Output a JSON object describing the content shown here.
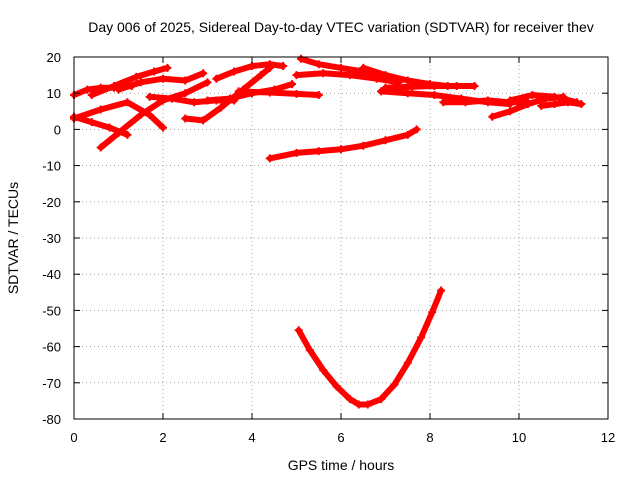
{
  "chart_data": {
    "type": "line",
    "title": "Day 006 of 2025, Sidereal Day-to-day VTEC variation (SDTVAR) for receiver thev",
    "xlabel": "GPS time / hours",
    "ylabel": "SDTVAR / TECUs",
    "xlim": [
      0,
      12
    ],
    "ylim": [
      -80,
      20
    ],
    "xticks": [
      0,
      2,
      4,
      6,
      8,
      10,
      12
    ],
    "yticks": [
      -80,
      -70,
      -60,
      -50,
      -40,
      -30,
      -20,
      -10,
      0,
      10,
      20
    ],
    "grid": true,
    "color": "#ff0000",
    "series": [
      {
        "name": "track-01",
        "x": [
          0.0,
          0.3,
          0.6,
          0.9,
          1.3
        ],
        "y": [
          9.5,
          11,
          11.5,
          11.5,
          12
        ]
      },
      {
        "name": "track-02",
        "x": [
          0.4,
          0.9,
          1.4,
          1.8,
          2.1
        ],
        "y": [
          9.5,
          12,
          14.5,
          16,
          17
        ]
      },
      {
        "name": "track-03",
        "x": [
          0.0,
          0.4,
          0.8,
          1.2
        ],
        "y": [
          3.5,
          2,
          0.5,
          -1.5
        ]
      },
      {
        "name": "track-04",
        "x": [
          0.0,
          0.6,
          1.2,
          1.7,
          2.0
        ],
        "y": [
          3.0,
          5.5,
          7.5,
          4,
          0.5
        ]
      },
      {
        "name": "track-05",
        "x": [
          0.6,
          1.0,
          1.5,
          2.0,
          2.5,
          3.0
        ],
        "y": [
          -5,
          -1,
          4,
          8,
          10,
          13
        ]
      },
      {
        "name": "track-06",
        "x": [
          1.0,
          1.5,
          2.0,
          2.5,
          2.9
        ],
        "y": [
          11,
          13,
          14,
          13.5,
          15.5
        ]
      },
      {
        "name": "track-07",
        "x": [
          1.7,
          2.2,
          2.7,
          3.2,
          3.6
        ],
        "y": [
          9.0,
          8.5,
          7.5,
          8,
          8
        ]
      },
      {
        "name": "track-08",
        "x": [
          2.5,
          2.9,
          3.3,
          3.8,
          4.2,
          4.4
        ],
        "y": [
          3.0,
          2.5,
          6,
          11,
          15,
          17
        ]
      },
      {
        "name": "track-09",
        "x": [
          3.2,
          3.6,
          4.0,
          4.4,
          4.7
        ],
        "y": [
          14.0,
          16,
          17.5,
          18,
          17.5
        ]
      },
      {
        "name": "track-10",
        "x": [
          3.0,
          3.5,
          4.0,
          4.5,
          4.9
        ],
        "y": [
          8.0,
          8.5,
          10,
          11,
          12.5
        ]
      },
      {
        "name": "track-11",
        "x": [
          3.7,
          4.4,
          5.0,
          5.5
        ],
        "y": [
          10.5,
          10.2,
          9.8,
          9.5
        ]
      },
      {
        "name": "track-12",
        "x": [
          4.4,
          5.0,
          5.5,
          6.0,
          6.5,
          7.0,
          7.5,
          7.7
        ],
        "y": [
          -8,
          -6.5,
          -6,
          -5.5,
          -4.5,
          -3,
          -1.5,
          0
        ]
      },
      {
        "name": "track-13",
        "x": [
          5.1,
          5.5,
          6.0,
          6.5,
          6.9
        ],
        "y": [
          19.5,
          18,
          17,
          16,
          15
        ]
      },
      {
        "name": "track-14",
        "x": [
          5.0,
          5.6,
          6.2,
          6.8,
          7.3
        ],
        "y": [
          15,
          15.5,
          15,
          14,
          13
        ]
      },
      {
        "name": "track-15",
        "x": [
          6.5,
          7.0,
          7.5,
          8.0,
          8.4
        ],
        "y": [
          17.0,
          15,
          13.5,
          12.5,
          12
        ]
      },
      {
        "name": "track-16",
        "x": [
          7.0,
          7.6,
          8.1,
          8.6,
          9.0
        ],
        "y": [
          11.5,
          11.8,
          12,
          12,
          12
        ]
      },
      {
        "name": "track-17",
        "x": [
          6.9,
          7.5,
          8.1,
          8.7,
          9.3,
          9.8
        ],
        "y": [
          10.5,
          10,
          9.5,
          8.5,
          7.5,
          7
        ]
      },
      {
        "name": "track-18",
        "x": [
          8.3,
          8.8,
          9.3,
          9.8,
          10.2
        ],
        "y": [
          7.5,
          7.5,
          8,
          7.5,
          7.5
        ]
      },
      {
        "name": "track-19",
        "x": [
          9.4,
          9.8,
          10.2,
          10.6,
          11.0
        ],
        "y": [
          3.5,
          5,
          7,
          8.5,
          9
        ]
      },
      {
        "name": "track-20",
        "x": [
          9.8,
          10.3,
          10.8,
          11.3
        ],
        "y": [
          8.0,
          9.5,
          9,
          7.5
        ]
      },
      {
        "name": "track-21",
        "x": [
          10.5,
          10.8,
          11.1,
          11.4
        ],
        "y": [
          6.5,
          7,
          7.5,
          7
        ]
      },
      {
        "name": "track-22",
        "x": [
          5.05,
          5.3,
          5.6,
          5.9,
          6.2,
          6.4,
          6.6,
          6.9,
          7.2,
          7.5,
          7.8,
          8.05,
          8.25
        ],
        "y": [
          -55.5,
          -61,
          -66.5,
          -71,
          -74.5,
          -76,
          -76,
          -74.5,
          -70.5,
          -64.5,
          -57.5,
          -50.5,
          -44.5
        ]
      }
    ]
  }
}
